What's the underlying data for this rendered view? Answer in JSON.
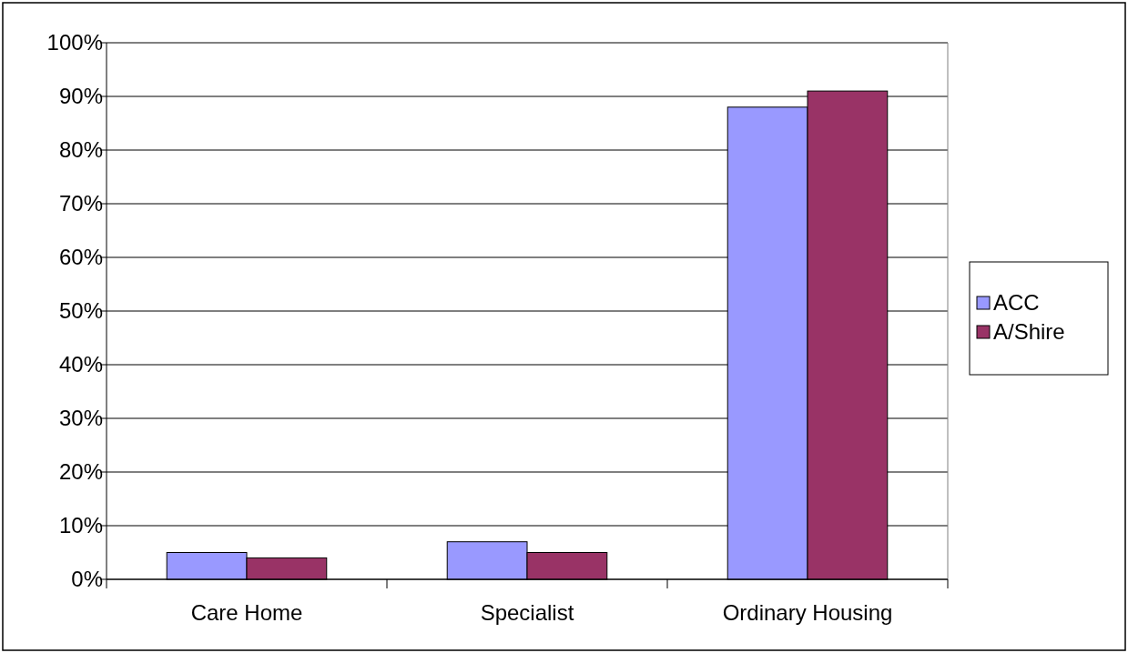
{
  "chart_data": {
    "type": "bar",
    "categories": [
      "Care Home",
      "Specialist",
      "Ordinary Housing"
    ],
    "series": [
      {
        "name": "ACC",
        "color": "#9999ff",
        "values": [
          5,
          7,
          88
        ]
      },
      {
        "name": "A/Shire",
        "color": "#993366",
        "values": [
          4,
          5,
          91
        ]
      }
    ],
    "ylim": [
      0,
      100
    ],
    "yticks": [
      {
        "value": 0,
        "label": "0%"
      },
      {
        "value": 10,
        "label": "10%"
      },
      {
        "value": 20,
        "label": "20%"
      },
      {
        "value": 30,
        "label": "30%"
      },
      {
        "value": 40,
        "label": "40%"
      },
      {
        "value": 50,
        "label": "50%"
      },
      {
        "value": 60,
        "label": "60%"
      },
      {
        "value": 70,
        "label": "70%"
      },
      {
        "value": 80,
        "label": "80%"
      },
      {
        "value": 90,
        "label": "90%"
      },
      {
        "value": 100,
        "label": "100%"
      }
    ],
    "grid": "y",
    "legend": "right"
  }
}
